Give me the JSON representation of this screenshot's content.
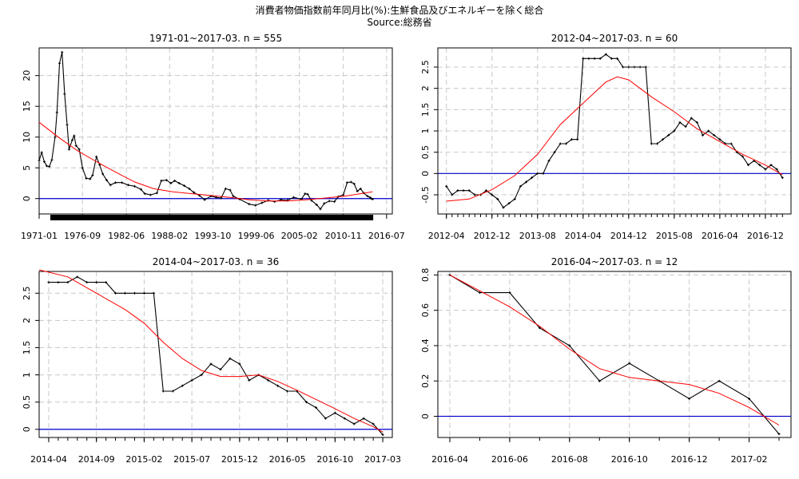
{
  "title": "消費者物価指数前年同月比(%):生鮮食品及びエネルギーを除く総合",
  "source": "Source:総務省",
  "colors": {
    "data": "#000000",
    "smooth": "#ff0000",
    "zero": "#0000cc",
    "grid": "#c8c8c8"
  },
  "chart_data": [
    {
      "type": "line",
      "title": "1971-01~2017-03. n = 555",
      "xlim": [
        0,
        555
      ],
      "ylim": [
        -2.5,
        24.5
      ],
      "yticks": [
        0,
        5,
        10,
        15,
        20
      ],
      "xticks": [
        {
          "pos": 0,
          "label": "1971-01"
        },
        {
          "pos": 68,
          "label": "1976-09"
        },
        {
          "pos": 137,
          "label": "1982-06"
        },
        {
          "pos": 205,
          "label": "1988-02"
        },
        {
          "pos": 273,
          "label": "1993-10"
        },
        {
          "pos": 341,
          "label": "1999-06"
        },
        {
          "pos": 409,
          "label": "2005-02"
        },
        {
          "pos": 478,
          "label": "2010-11"
        },
        {
          "pos": 546,
          "label": "2016-07"
        }
      ],
      "rug": true,
      "series_points": true,
      "data": [
        [
          0,
          6.2
        ],
        [
          4,
          7.5
        ],
        [
          8,
          6
        ],
        [
          12,
          5.3
        ],
        [
          16,
          5.2
        ],
        [
          20,
          6.3
        ],
        [
          25,
          10
        ],
        [
          28,
          14
        ],
        [
          32,
          22
        ],
        [
          36,
          23.8
        ],
        [
          40,
          17
        ],
        [
          44,
          12
        ],
        [
          47,
          8
        ],
        [
          52,
          9.5
        ],
        [
          55,
          10.2
        ],
        [
          58,
          8.6
        ],
        [
          63,
          8
        ],
        [
          68,
          5
        ],
        [
          74,
          3.3
        ],
        [
          80,
          3.2
        ],
        [
          84,
          3.8
        ],
        [
          90,
          6.8
        ],
        [
          95,
          5.5
        ],
        [
          100,
          4
        ],
        [
          106,
          3
        ],
        [
          112,
          2.2
        ],
        [
          120,
          2.6
        ],
        [
          130,
          2.6
        ],
        [
          140,
          2.2
        ],
        [
          150,
          2
        ],
        [
          160,
          1.5
        ],
        [
          166,
          0.8
        ],
        [
          175,
          0.6
        ],
        [
          185,
          0.9
        ],
        [
          192,
          2.9
        ],
        [
          200,
          3
        ],
        [
          207,
          2.5
        ],
        [
          213,
          2.9
        ],
        [
          220,
          2.5
        ],
        [
          228,
          2.1
        ],
        [
          236,
          1.6
        ],
        [
          243,
          1
        ],
        [
          252,
          0.5
        ],
        [
          260,
          -0.2
        ],
        [
          270,
          0.4
        ],
        [
          278,
          0.2
        ],
        [
          286,
          0.1
        ],
        [
          293,
          1.6
        ],
        [
          300,
          1.4
        ],
        [
          305,
          0.4
        ],
        [
          315,
          -0.1
        ],
        [
          330,
          -0.9
        ],
        [
          340,
          -1.1
        ],
        [
          350,
          -0.7
        ],
        [
          360,
          -0.3
        ],
        [
          370,
          -0.5
        ],
        [
          380,
          -0.2
        ],
        [
          390,
          -0.3
        ],
        [
          400,
          0.2
        ],
        [
          412,
          -0.1
        ],
        [
          418,
          0.8
        ],
        [
          422,
          0.7
        ],
        [
          428,
          -0.3
        ],
        [
          436,
          -1
        ],
        [
          442,
          -1.7
        ],
        [
          448,
          -0.8
        ],
        [
          456,
          -0.4
        ],
        [
          464,
          -0.5
        ],
        [
          470,
          0.3
        ],
        [
          478,
          0.6
        ],
        [
          484,
          2.6
        ],
        [
          490,
          2.7
        ],
        [
          495,
          2.4
        ],
        [
          500,
          1.2
        ],
        [
          505,
          1.6
        ],
        [
          510,
          0.9
        ],
        [
          516,
          0.4
        ],
        [
          520,
          0.2
        ],
        [
          522,
          0
        ],
        [
          524,
          -0.1
        ]
      ],
      "smooth": [
        [
          0,
          12.4
        ],
        [
          30,
          10
        ],
        [
          60,
          7.8
        ],
        [
          90,
          6
        ],
        [
          120,
          4.3
        ],
        [
          150,
          2.7
        ],
        [
          180,
          1.6
        ],
        [
          210,
          1.1
        ],
        [
          240,
          0.8
        ],
        [
          270,
          0.5
        ],
        [
          300,
          0.2
        ],
        [
          330,
          -0.2
        ],
        [
          360,
          -0.4
        ],
        [
          390,
          -0.4
        ],
        [
          420,
          -0.2
        ],
        [
          450,
          0.1
        ],
        [
          480,
          0.4
        ],
        [
          500,
          0.7
        ],
        [
          524,
          1.1
        ]
      ]
    },
    {
      "type": "line",
      "title": "2012-04~2017-03. n = 60",
      "xlim": [
        -1.5,
        60.5
      ],
      "ylim": [
        -0.95,
        2.95
      ],
      "yticks": [
        -0.5,
        0,
        0.5,
        1,
        1.5,
        2,
        2.5
      ],
      "xticks": [
        {
          "pos": 0,
          "label": "2012-04"
        },
        {
          "pos": 8,
          "label": "2012-12"
        },
        {
          "pos": 16,
          "label": "2013-08"
        },
        {
          "pos": 24,
          "label": "2014-04"
        },
        {
          "pos": 32,
          "label": "2014-12"
        },
        {
          "pos": 40,
          "label": "2015-08"
        },
        {
          "pos": 48,
          "label": "2016-04"
        },
        {
          "pos": 56,
          "label": "2016-12"
        }
      ],
      "minor_ticks": true,
      "data": [
        -0.3,
        -0.5,
        -0.4,
        -0.4,
        -0.4,
        -0.5,
        -0.5,
        -0.4,
        -0.5,
        -0.6,
        -0.8,
        -0.7,
        -0.6,
        -0.3,
        -0.2,
        -0.1,
        0,
        0,
        0.3,
        0.5,
        0.7,
        0.7,
        0.8,
        0.8,
        2.7,
        2.7,
        2.7,
        2.7,
        2.8,
        2.7,
        2.7,
        2.5,
        2.5,
        2.5,
        2.5,
        2.5,
        0.7,
        0.7,
        0.8,
        0.9,
        1.0,
        1.2,
        1.1,
        1.3,
        1.2,
        0.9,
        1.0,
        0.9,
        0.8,
        0.7,
        0.7,
        0.5,
        0.4,
        0.2,
        0.3,
        0.2,
        0.1,
        0.2,
        0.1,
        -0.1
      ],
      "smooth": [
        [
          0,
          -0.65
        ],
        [
          4,
          -0.6
        ],
        [
          8,
          -0.38
        ],
        [
          12,
          -0.05
        ],
        [
          16,
          0.45
        ],
        [
          20,
          1.15
        ],
        [
          24,
          1.65
        ],
        [
          28,
          2.15
        ],
        [
          30,
          2.27
        ],
        [
          32,
          2.2
        ],
        [
          34,
          2.0
        ],
        [
          36,
          1.8
        ],
        [
          40,
          1.45
        ],
        [
          44,
          1.05
        ],
        [
          48,
          0.75
        ],
        [
          52,
          0.45
        ],
        [
          56,
          0.2
        ],
        [
          59,
          -0.03
        ]
      ]
    },
    {
      "type": "line",
      "title": "2014-04~2017-03. n = 36",
      "xlim": [
        -1.0,
        36.0
      ],
      "ylim": [
        -0.15,
        2.9
      ],
      "yticks": [
        0,
        0.5,
        1,
        1.5,
        2,
        2.5
      ],
      "xticks": [
        {
          "pos": 0,
          "label": "2014-04"
        },
        {
          "pos": 5,
          "label": "2014-09"
        },
        {
          "pos": 10,
          "label": "2015-02"
        },
        {
          "pos": 15,
          "label": "2015-07"
        },
        {
          "pos": 20,
          "label": "2015-12"
        },
        {
          "pos": 25,
          "label": "2016-05"
        },
        {
          "pos": 30,
          "label": "2016-10"
        },
        {
          "pos": 35,
          "label": "2017-03"
        }
      ],
      "minor_ticks": true,
      "data": [
        2.7,
        2.7,
        2.7,
        2.8,
        2.7,
        2.7,
        2.7,
        2.5,
        2.5,
        2.5,
        2.5,
        2.5,
        0.7,
        0.7,
        0.8,
        0.9,
        1.0,
        1.2,
        1.1,
        1.3,
        1.2,
        0.9,
        1.0,
        0.9,
        0.8,
        0.7,
        0.7,
        0.5,
        0.4,
        0.2,
        0.3,
        0.2,
        0.1,
        0.2,
        0.1,
        -0.1
      ],
      "smooth": [
        [
          -1,
          2.93
        ],
        [
          2,
          2.8
        ],
        [
          5,
          2.5
        ],
        [
          8,
          2.2
        ],
        [
          10,
          1.95
        ],
        [
          12,
          1.6
        ],
        [
          14,
          1.3
        ],
        [
          16,
          1.08
        ],
        [
          18,
          0.97
        ],
        [
          20,
          0.97
        ],
        [
          22,
          1.0
        ],
        [
          24,
          0.88
        ],
        [
          26,
          0.72
        ],
        [
          28,
          0.55
        ],
        [
          30,
          0.38
        ],
        [
          32,
          0.2
        ],
        [
          34,
          0.05
        ],
        [
          35,
          -0.05
        ]
      ]
    },
    {
      "type": "line",
      "title": "2016-04~2017-03. n = 12",
      "xlim": [
        -0.4,
        11.4
      ],
      "ylim": [
        -0.12,
        0.82
      ],
      "yticks": [
        0,
        0.2,
        0.4,
        0.6,
        0.8
      ],
      "xticks": [
        {
          "pos": 0,
          "label": "2016-04"
        },
        {
          "pos": 2,
          "label": "2016-06"
        },
        {
          "pos": 4,
          "label": "2016-08"
        },
        {
          "pos": 6,
          "label": "2016-10"
        },
        {
          "pos": 8,
          "label": "2016-12"
        },
        {
          "pos": 10,
          "label": "2017-02"
        }
      ],
      "minor_ticks": true,
      "data": [
        0.8,
        0.7,
        0.7,
        0.5,
        0.4,
        0.2,
        0.3,
        0.2,
        0.1,
        0.2,
        0.1,
        -0.1
      ],
      "smooth": [
        [
          0,
          0.8
        ],
        [
          1,
          0.71
        ],
        [
          2,
          0.62
        ],
        [
          3,
          0.51
        ],
        [
          4,
          0.38
        ],
        [
          5,
          0.27
        ],
        [
          6,
          0.22
        ],
        [
          7,
          0.2
        ],
        [
          8,
          0.18
        ],
        [
          9,
          0.13
        ],
        [
          10,
          0.05
        ],
        [
          11,
          -0.05
        ]
      ]
    }
  ]
}
